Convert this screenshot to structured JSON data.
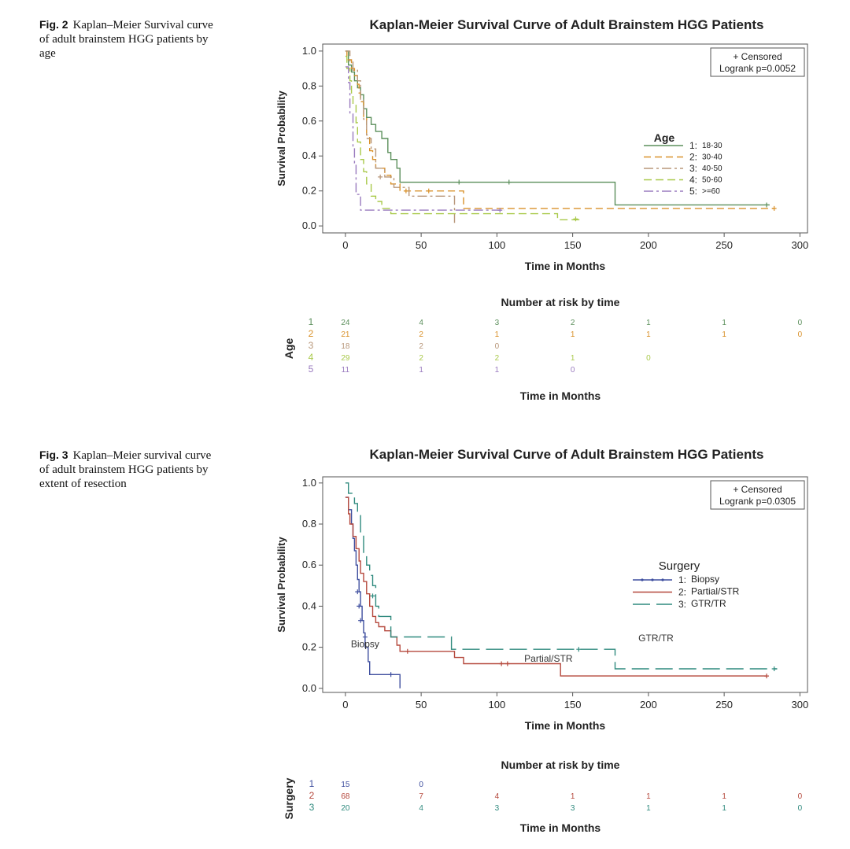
{
  "figures": [
    {
      "caption_label": "Fig. 2",
      "caption_text": "Kaplan–Meier Survival curve of adult brainstem HGG patients by age"
    },
    {
      "caption_label": "Fig. 3",
      "caption_text": "Kaplan–Meier survival curve of adult brainstem HGG patients by extent of resection"
    }
  ],
  "chart_data": [
    {
      "type": "line",
      "subtype": "kaplan-meier-step",
      "title": "Kaplan-Meier Survival Curve of Adult Brainstem HGG Patients",
      "xlabel": "Time in Months",
      "ylabel": "Survival Probability",
      "xlim": [
        -15,
        305
      ],
      "ylim": [
        -0.04,
        1.04
      ],
      "xticks": [
        0,
        50,
        100,
        150,
        200,
        250,
        300
      ],
      "yticks": [
        "0.0",
        "0.2",
        "0.4",
        "0.6",
        "0.8",
        "1.0"
      ],
      "legend_box": [
        "+ Censored",
        "Logrank p=0.0052"
      ],
      "legend_title": "Age",
      "legend_placement": "center-right",
      "series": [
        {
          "code": "1",
          "name": "18-30",
          "color": "#5b8f5b",
          "dash": "",
          "censor": [
            [
              75,
              0.25
            ],
            [
              108,
              0.25
            ],
            [
              278,
              0.12
            ]
          ],
          "points": [
            [
              0,
              1.0
            ],
            [
              2,
              0.92
            ],
            [
              4,
              0.88
            ],
            [
              6,
              0.83
            ],
            [
              8,
              0.79
            ],
            [
              10,
              0.75
            ],
            [
              12,
              0.67
            ],
            [
              14,
              0.62
            ],
            [
              17,
              0.58
            ],
            [
              20,
              0.54
            ],
            [
              24,
              0.5
            ],
            [
              28,
              0.42
            ],
            [
              30,
              0.38
            ],
            [
              34,
              0.33
            ],
            [
              36,
              0.25
            ],
            [
              178,
              0.25
            ],
            [
              178,
              0.12
            ],
            [
              280,
              0.12
            ]
          ]
        },
        {
          "code": "2",
          "name": "30-40",
          "color": "#d9912a",
          "dash": "9,5",
          "censor": [
            [
              40,
              0.2
            ],
            [
              55,
              0.2
            ],
            [
              283,
              0.1
            ]
          ],
          "points": [
            [
              0,
              1.0
            ],
            [
              1,
              0.95
            ],
            [
              4,
              0.9
            ],
            [
              6,
              0.86
            ],
            [
              8,
              0.81
            ],
            [
              9,
              0.76
            ],
            [
              10,
              0.71
            ],
            [
              12,
              0.62
            ],
            [
              14,
              0.52
            ],
            [
              16,
              0.43
            ],
            [
              18,
              0.38
            ],
            [
              20,
              0.33
            ],
            [
              26,
              0.29
            ],
            [
              30,
              0.24
            ],
            [
              36,
              0.2
            ],
            [
              78,
              0.2
            ],
            [
              78,
              0.1
            ],
            [
              283,
              0.1
            ]
          ]
        },
        {
          "code": "3",
          "name": "40-50",
          "color": "#b8977a",
          "dash": "12,4,3,4",
          "censor": [
            [
              23,
              0.28
            ]
          ],
          "points": [
            [
              0,
              1.0
            ],
            [
              3,
              0.94
            ],
            [
              5,
              0.89
            ],
            [
              8,
              0.83
            ],
            [
              10,
              0.72
            ],
            [
              12,
              0.61
            ],
            [
              14,
              0.5
            ],
            [
              17,
              0.44
            ],
            [
              20,
              0.33
            ],
            [
              26,
              0.28
            ],
            [
              32,
              0.22
            ],
            [
              42,
              0.17
            ],
            [
              72,
              0.17
            ],
            [
              72,
              0.0
            ]
          ]
        },
        {
          "code": "4",
          "name": "50-60",
          "color": "#a9c94a",
          "dash": "10,5",
          "censor": [
            [
              152,
              0.04
            ]
          ],
          "points": [
            [
              0,
              0.97
            ],
            [
              1,
              0.9
            ],
            [
              3,
              0.83
            ],
            [
              4,
              0.76
            ],
            [
              5,
              0.69
            ],
            [
              7,
              0.59
            ],
            [
              8,
              0.48
            ],
            [
              10,
              0.38
            ],
            [
              12,
              0.31
            ],
            [
              14,
              0.24
            ],
            [
              17,
              0.17
            ],
            [
              20,
              0.14
            ],
            [
              24,
              0.1
            ],
            [
              30,
              0.07
            ],
            [
              140,
              0.07
            ],
            [
              140,
              0.035
            ],
            [
              155,
              0.035
            ]
          ]
        },
        {
          "code": "5",
          "name": ">=60",
          "color": "#9a7bbf",
          "dash": "12,4,3,4",
          "censor": [
            [
              102,
              0.09
            ]
          ],
          "points": [
            [
              0,
              0.91
            ],
            [
              2,
              0.82
            ],
            [
              3,
              0.64
            ],
            [
              5,
              0.45
            ],
            [
              6,
              0.36
            ],
            [
              7,
              0.18
            ],
            [
              10,
              0.09
            ],
            [
              105,
              0.09
            ]
          ]
        }
      ],
      "risk_table": {
        "title": "Number at risk by time",
        "group_label": "Age",
        "xlabel": "Time in Months",
        "times": [
          0,
          50,
          100,
          150,
          200,
          250,
          300
        ],
        "rows": [
          {
            "group": "1",
            "values": [
              "24",
              "4",
              "3",
              "2",
              "1",
              "1",
              "0"
            ]
          },
          {
            "group": "2",
            "values": [
              "21",
              "2",
              "1",
              "1",
              "1",
              "1",
              "0"
            ]
          },
          {
            "group": "3",
            "values": [
              "18",
              "2",
              "0",
              "",
              "",
              "",
              ""
            ]
          },
          {
            "group": "4",
            "values": [
              "29",
              "2",
              "2",
              "1",
              "0",
              "",
              ""
            ]
          },
          {
            "group": "5",
            "values": [
              "11",
              "1",
              "1",
              "0",
              "",
              "",
              ""
            ]
          }
        ]
      }
    },
    {
      "type": "line",
      "subtype": "kaplan-meier-step",
      "title": "Kaplan-Meier Survival Curve of Adult Brainstem HGG Patients",
      "xlabel": "Time in Months",
      "ylabel": "Survival Probability",
      "xlim": [
        -15,
        305
      ],
      "ylim": [
        -0.02,
        1.03
      ],
      "xticks": [
        0,
        50,
        100,
        150,
        200,
        250,
        300
      ],
      "yticks": [
        "0.0",
        "0.2",
        "0.4",
        "0.6",
        "0.8",
        "1.0"
      ],
      "legend_box": [
        "+ Censored",
        "Logrank p=0.0305"
      ],
      "legend_title": "Surgery",
      "legend_placement": "center-right",
      "annotations": [
        {
          "text": "Biopsy",
          "x": 13,
          "y": 0.2
        },
        {
          "text": "Partial/STR",
          "x": 134,
          "y": 0.13
        },
        {
          "text": "GTR/TR",
          "x": 205,
          "y": 0.23
        }
      ],
      "series": [
        {
          "code": "1",
          "name": "Biopsy",
          "color": "#3f4f9f",
          "dash": "",
          "marker": "dot",
          "censor": [
            [
              8,
              0.47
            ],
            [
              9,
              0.4
            ],
            [
              10,
              0.33
            ],
            [
              13,
              0.25
            ],
            [
              30,
              0.067
            ]
          ],
          "points": [
            [
              0,
              0.93
            ],
            [
              2,
              0.87
            ],
            [
              4,
              0.8
            ],
            [
              5,
              0.73
            ],
            [
              6,
              0.67
            ],
            [
              7,
              0.6
            ],
            [
              8,
              0.53
            ],
            [
              9,
              0.47
            ],
            [
              10,
              0.4
            ],
            [
              11,
              0.33
            ],
            [
              12,
              0.27
            ],
            [
              13,
              0.2
            ],
            [
              15,
              0.13
            ],
            [
              16,
              0.067
            ],
            [
              36,
              0.067
            ],
            [
              36,
              0.0
            ]
          ]
        },
        {
          "code": "2",
          "name": "Partial/STR",
          "color": "#b5483c",
          "dash": "",
          "censor": [
            [
              41,
              0.18
            ],
            [
              103,
              0.12
            ],
            [
              107,
              0.12
            ],
            [
              278,
              0.06
            ]
          ],
          "points": [
            [
              0,
              0.93
            ],
            [
              2,
              0.85
            ],
            [
              3,
              0.8
            ],
            [
              5,
              0.74
            ],
            [
              7,
              0.68
            ],
            [
              9,
              0.62
            ],
            [
              10,
              0.56
            ],
            [
              12,
              0.52
            ],
            [
              14,
              0.46
            ],
            [
              16,
              0.4
            ],
            [
              18,
              0.35
            ],
            [
              20,
              0.32
            ],
            [
              22,
              0.3
            ],
            [
              26,
              0.28
            ],
            [
              30,
              0.25
            ],
            [
              34,
              0.21
            ],
            [
              36,
              0.18
            ],
            [
              72,
              0.18
            ],
            [
              72,
              0.15
            ],
            [
              78,
              0.15
            ],
            [
              78,
              0.12
            ],
            [
              142,
              0.12
            ],
            [
              142,
              0.06
            ],
            [
              278,
              0.06
            ]
          ]
        },
        {
          "code": "3",
          "name": "GTR/TR",
          "color": "#2f8a7e",
          "dash": "22,8",
          "censor": [
            [
              18,
              0.45
            ],
            [
              154,
              0.19
            ],
            [
              283,
              0.095
            ]
          ],
          "points": [
            [
              0,
              1.0
            ],
            [
              2,
              0.95
            ],
            [
              6,
              0.9
            ],
            [
              8,
              0.85
            ],
            [
              10,
              0.75
            ],
            [
              12,
              0.65
            ],
            [
              14,
              0.6
            ],
            [
              16,
              0.55
            ],
            [
              18,
              0.5
            ],
            [
              20,
              0.4
            ],
            [
              22,
              0.35
            ],
            [
              30,
              0.25
            ],
            [
              70,
              0.25
            ],
            [
              70,
              0.19
            ],
            [
              178,
              0.19
            ],
            [
              178,
              0.095
            ],
            [
              285,
              0.095
            ]
          ]
        }
      ],
      "risk_table": {
        "title": "Number at risk by time",
        "group_label": "Surgery",
        "xlabel": "Time in Months",
        "times": [
          0,
          50,
          100,
          150,
          200,
          250,
          300
        ],
        "rows": [
          {
            "group": "1",
            "values": [
              "15",
              "0",
              "",
              "",
              "",
              "",
              ""
            ]
          },
          {
            "group": "2",
            "values": [
              "68",
              "7",
              "4",
              "1",
              "1",
              "1",
              "0"
            ]
          },
          {
            "group": "3",
            "values": [
              "20",
              "4",
              "3",
              "3",
              "1",
              "1",
              "0"
            ]
          }
        ]
      }
    }
  ]
}
